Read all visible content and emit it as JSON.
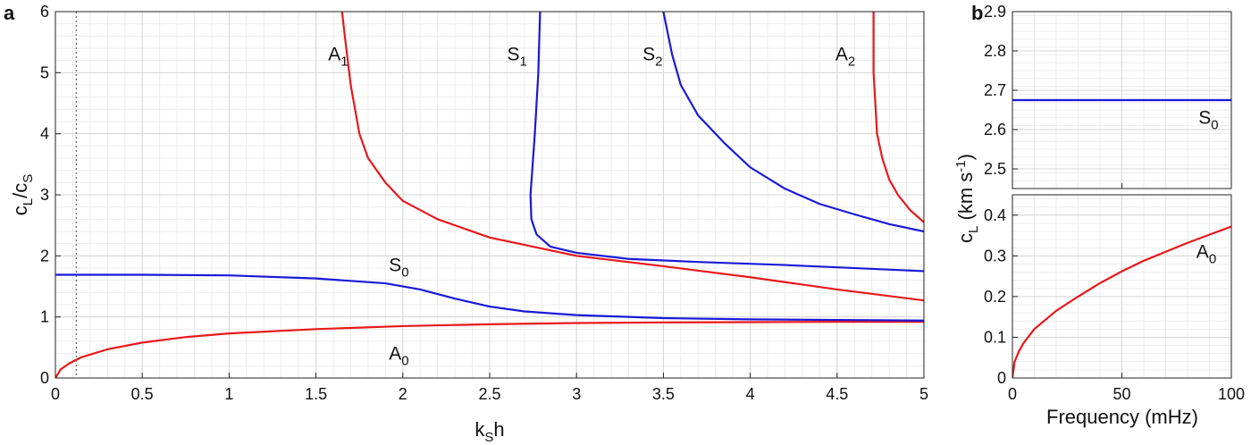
{
  "chart_data": [
    {
      "type": "line",
      "panel": "a",
      "xlabel": {
        "main": "k",
        "sub": "S",
        "tail": "h"
      },
      "ylabel": {
        "c1": "c",
        "s1": "L",
        "slash": "/c",
        "s2": "S"
      },
      "xlim": [
        0,
        5
      ],
      "ylim": [
        0,
        6
      ],
      "xticks": [
        "0",
        "0.5",
        "1",
        "1.5",
        "2",
        "2.5",
        "3",
        "3.5",
        "4",
        "4.5",
        "5"
      ],
      "yticks": [
        "0",
        "1",
        "2",
        "3",
        "4",
        "5",
        "6"
      ],
      "grid": true,
      "minor_grid": true,
      "vline_x": 0.12,
      "series": [
        {
          "name": "A0",
          "color": "#e8181b",
          "points": [
            [
              0,
              0
            ],
            [
              0.03,
              0.14
            ],
            [
              0.08,
              0.24
            ],
            [
              0.15,
              0.34
            ],
            [
              0.3,
              0.47
            ],
            [
              0.5,
              0.58
            ],
            [
              0.75,
              0.67
            ],
            [
              1.0,
              0.73
            ],
            [
              1.5,
              0.8
            ],
            [
              2.0,
              0.85
            ],
            [
              2.5,
              0.88
            ],
            [
              3.0,
              0.9
            ],
            [
              3.5,
              0.91
            ],
            [
              4.0,
              0.915
            ],
            [
              4.5,
              0.92
            ],
            [
              5.0,
              0.92
            ]
          ]
        },
        {
          "name": "S0",
          "color": "#1919d8",
          "points": [
            [
              0,
              1.69
            ],
            [
              0.5,
              1.69
            ],
            [
              1.0,
              1.68
            ],
            [
              1.5,
              1.63
            ],
            [
              1.9,
              1.55
            ],
            [
              2.1,
              1.45
            ],
            [
              2.3,
              1.3
            ],
            [
              2.5,
              1.17
            ],
            [
              2.7,
              1.09
            ],
            [
              3.0,
              1.03
            ],
            [
              3.5,
              0.98
            ],
            [
              4.0,
              0.96
            ],
            [
              4.5,
              0.95
            ],
            [
              5.0,
              0.94
            ]
          ]
        },
        {
          "name": "A1",
          "color": "#e8181b",
          "points": [
            [
              1.65,
              6.0
            ],
            [
              1.67,
              5.5
            ],
            [
              1.7,
              4.8
            ],
            [
              1.75,
              4.0
            ],
            [
              1.8,
              3.6
            ],
            [
              1.9,
              3.2
            ],
            [
              2.0,
              2.9
            ],
            [
              2.2,
              2.6
            ],
            [
              2.5,
              2.3
            ],
            [
              3.0,
              2.0
            ],
            [
              3.5,
              1.83
            ],
            [
              4.0,
              1.65
            ],
            [
              4.5,
              1.45
            ],
            [
              5.0,
              1.27
            ]
          ]
        },
        {
          "name": "S1",
          "color": "#1919d8",
          "points": [
            [
              2.79,
              6.0
            ],
            [
              2.78,
              5.0
            ],
            [
              2.76,
              4.0
            ],
            [
              2.745,
              3.4
            ],
            [
              2.735,
              3.0
            ],
            [
              2.74,
              2.6
            ],
            [
              2.77,
              2.35
            ],
            [
              2.85,
              2.15
            ],
            [
              3.0,
              2.05
            ],
            [
              3.3,
              1.95
            ],
            [
              3.7,
              1.9
            ],
            [
              4.2,
              1.85
            ],
            [
              5.0,
              1.75
            ]
          ]
        },
        {
          "name": "S2",
          "color": "#1919d8",
          "points": [
            [
              3.5,
              6.0
            ],
            [
              3.55,
              5.3
            ],
            [
              3.6,
              4.8
            ],
            [
              3.7,
              4.3
            ],
            [
              3.85,
              3.85
            ],
            [
              4.0,
              3.45
            ],
            [
              4.2,
              3.1
            ],
            [
              4.4,
              2.85
            ],
            [
              4.6,
              2.68
            ],
            [
              4.8,
              2.52
            ],
            [
              5.0,
              2.4
            ]
          ]
        },
        {
          "name": "A2",
          "color": "#e8181b",
          "points": [
            [
              4.71,
              6.0
            ],
            [
              4.71,
              5.0
            ],
            [
              4.72,
              4.5
            ],
            [
              4.73,
              4.0
            ],
            [
              4.76,
              3.6
            ],
            [
              4.8,
              3.25
            ],
            [
              4.85,
              3.0
            ],
            [
              4.92,
              2.75
            ],
            [
              5.0,
              2.55
            ]
          ]
        }
      ],
      "labels": [
        {
          "main": "A",
          "sub": "1",
          "x": 1.57,
          "y": 5.2
        },
        {
          "main": "S",
          "sub": "1",
          "x": 2.6,
          "y": 5.2
        },
        {
          "main": "S",
          "sub": "2",
          "x": 3.38,
          "y": 5.2
        },
        {
          "main": "A",
          "sub": "2",
          "x": 4.49,
          "y": 5.2
        },
        {
          "main": "S",
          "sub": "0",
          "x": 1.92,
          "y": 1.75
        },
        {
          "main": "A",
          "sub": "0",
          "x": 1.92,
          "y": 0.3
        }
      ]
    },
    {
      "type": "line",
      "panel": "b",
      "xlabel": "Frequency (mHz)",
      "ylabel": {
        "c": "c",
        "s": "L",
        "unit": " (km s",
        "sup": "-1",
        "close": ")"
      },
      "subplots": [
        {
          "ylim": [
            2.45,
            2.9
          ],
          "yticks": [
            "2.5",
            "2.6",
            "2.7",
            "2.8",
            "2.9"
          ],
          "xlim": [
            0,
            100
          ],
          "grid": true,
          "series": [
            {
              "name": "S0",
              "color": "#1919d8",
              "points": [
                [
                  0,
                  2.675
                ],
                [
                  100,
                  2.675
                ]
              ]
            }
          ],
          "labels": [
            {
              "main": "S",
              "sub": "0",
              "x": 85,
              "y": 2.615
            }
          ]
        },
        {
          "ylim": [
            0,
            0.45
          ],
          "yticks": [
            "0",
            "0.1",
            "0.2",
            "0.3",
            "0.4"
          ],
          "xlim": [
            0,
            100
          ],
          "xticks": [
            "0",
            "50",
            "100"
          ],
          "grid": true,
          "series": [
            {
              "name": "A0",
              "color": "#e8181b",
              "points": [
                [
                  0,
                  0
                ],
                [
                  1,
                  0.04
                ],
                [
                  3,
                  0.066
                ],
                [
                  5,
                  0.085
                ],
                [
                  10,
                  0.12
                ],
                [
                  20,
                  0.165
                ],
                [
                  30,
                  0.2
                ],
                [
                  40,
                  0.233
                ],
                [
                  50,
                  0.262
                ],
                [
                  60,
                  0.288
                ],
                [
                  70,
                  0.31
                ],
                [
                  80,
                  0.332
                ],
                [
                  90,
                  0.352
                ],
                [
                  100,
                  0.372
                ]
              ]
            }
          ],
          "labels": [
            {
              "main": "A",
              "sub": "0",
              "x": 84,
              "y": 0.295
            }
          ]
        }
      ]
    }
  ],
  "panel_letters": [
    "a",
    "b"
  ]
}
